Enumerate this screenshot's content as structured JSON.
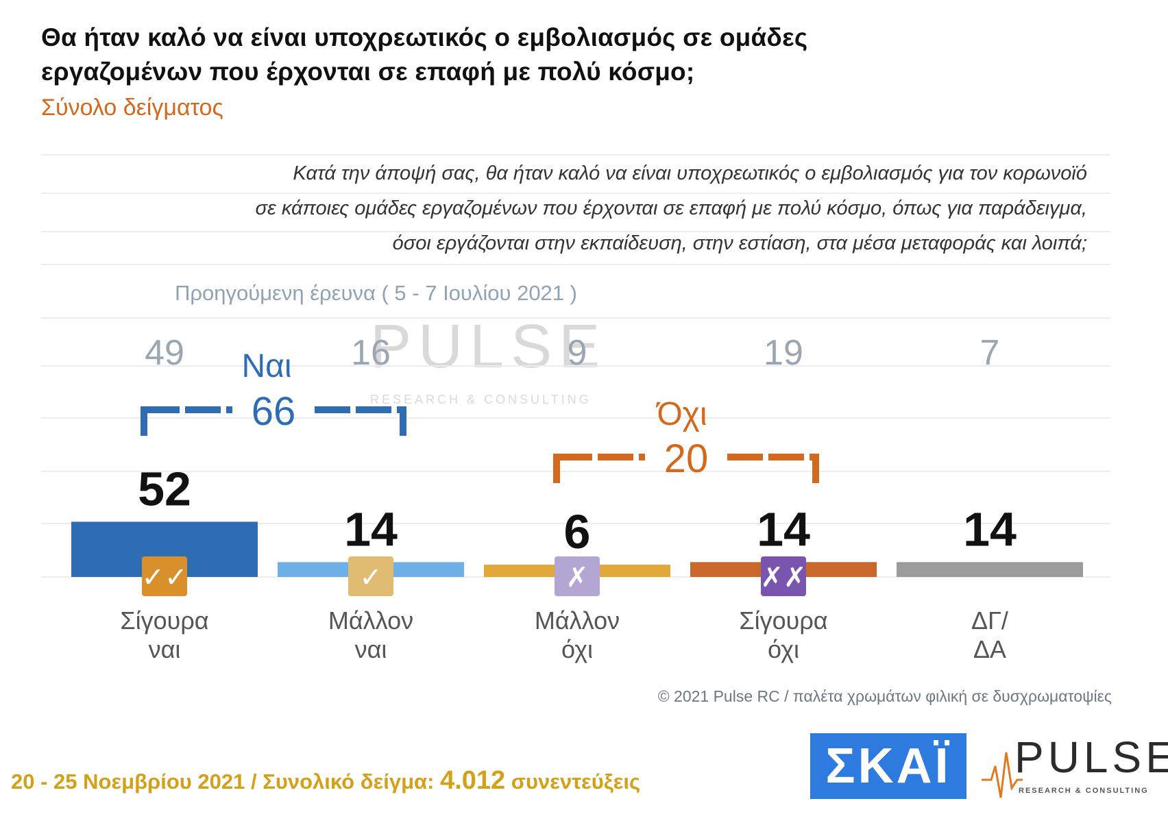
{
  "header": {
    "title": "Θα ήταν καλό να είναι υποχρεωτικός ο εμβολιασμός σε ομάδες εργαζομένων που έρχονται σε επαφή με πολύ κόσμο;",
    "subtitle": "Σύνολο δείγματος"
  },
  "question": {
    "line1": "Κατά την άποψή σας, θα ήταν καλό να είναι υποχρεωτικός ο εμβολιασμός για τον κορωνοϊό",
    "line2": "σε κάποιες ομάδες εργαζομένων που έρχονται σε επαφή με πολύ κόσμο, όπως για παράδειγμα,",
    "line3": "όσοι εργάζονται στην εκπαίδευση, στην εστίαση, στα μέσα μεταφοράς και λοιπά;"
  },
  "prev_survey_label": "Προηγούμενη έρευνα  ( 5 - 7 Ιουλίου 2021 )",
  "chart_data": {
    "type": "bar",
    "categories": [
      "Σίγουρα ναι",
      "Μάλλον ναι",
      "Μάλλον όχι",
      "Σίγουρα όχι",
      "ΔΓ/ ΔΑ"
    ],
    "category_lines": [
      [
        "Σίγουρα",
        "ναι"
      ],
      [
        "Μάλλον",
        "ναι"
      ],
      [
        "Μάλλον",
        "όχι"
      ],
      [
        "Σίγουρα",
        "όχι"
      ],
      [
        "ΔΓ/",
        "ΔΑ"
      ]
    ],
    "series": [
      {
        "values": [
          52,
          14,
          6,
          14,
          14
        ]
      },
      {
        "name": "Προηγούμενη έρευνα ( 5 - 7 Ιουλίου 2021 )",
        "values": [
          49,
          16,
          9,
          19,
          7
        ]
      }
    ],
    "colors": [
      "#2e6db4",
      "#6fb0e6",
      "#e0a93a",
      "#c9682a",
      "#9b9b9b"
    ],
    "icons": [
      "double-check-icon",
      "check-icon",
      "cross-icon",
      "double-cross-icon",
      ""
    ],
    "icon_glyphs": [
      "✓✓",
      "✓",
      "✗",
      "✗✗",
      ""
    ],
    "icon_colors": [
      "#d9902a",
      "#e0bb72",
      "#b3a6d3",
      "#7a55b0",
      ""
    ],
    "groups": [
      {
        "label": "Ναι",
        "total": 66,
        "from": 0,
        "to": 1,
        "color": "#2e6db4"
      },
      {
        "label": "Όχι",
        "total": 20,
        "from": 2,
        "to": 3,
        "color": "#d2691e"
      }
    ],
    "ylim": [
      0,
      100
    ],
    "grid": true
  },
  "footer": {
    "copyright": "© 2021 Pulse RC  /  παλέτα χρωμάτων φιλική σε δυσχρωματοψίες",
    "date_range": "20 - 25  Νοεμβρίου 2021  /  Συνολικό δείγμα:",
    "sample_size": "4.012",
    "sample_unit": "συνεντεύξεις"
  },
  "logos": {
    "skai": "ΣΚΑΪ",
    "pulse": "PULSE",
    "pulse_tagline": "RESEARCH & CONSULTING",
    "watermark": "PULSE",
    "watermark_tagline": "RESEARCH & CONSULTING"
  }
}
